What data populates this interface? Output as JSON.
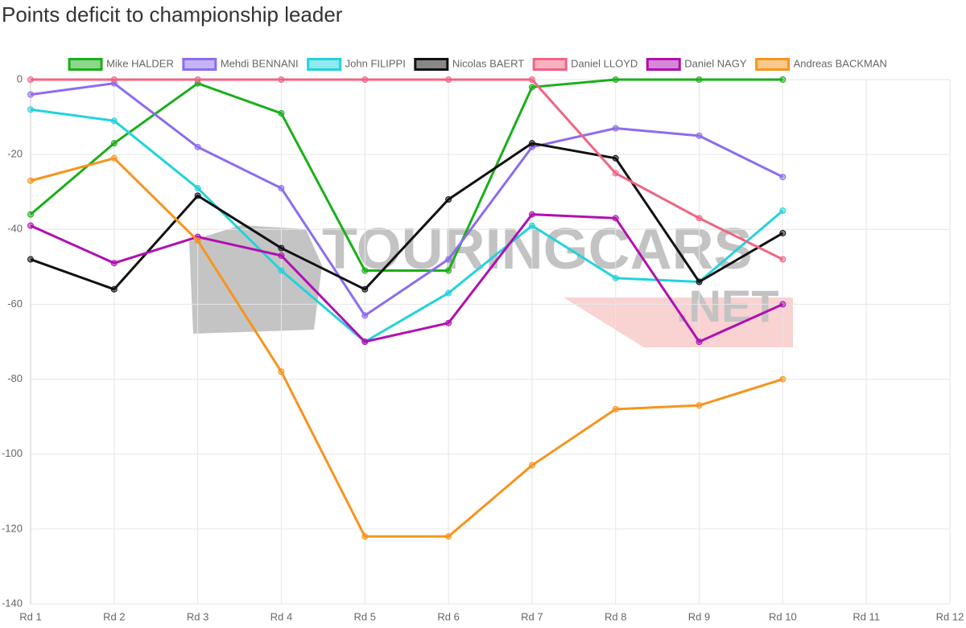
{
  "chart_data": {
    "type": "line",
    "title": "Points deficit to championship leader",
    "watermark": [
      "TOURINGCARS",
      ".NET"
    ],
    "categories": [
      "Rd 1",
      "Rd 2",
      "Rd 3",
      "Rd 4",
      "Rd 5",
      "Rd 6",
      "Rd 7",
      "Rd 8",
      "Rd 9",
      "Rd 10",
      "Rd 11",
      "Rd 12"
    ],
    "series": [
      {
        "name": "Mike HALDER",
        "color": "#1aaf1a",
        "values": [
          -36,
          -17,
          -1,
          -9,
          -51,
          -51,
          -2,
          0,
          0,
          0,
          null,
          null
        ]
      },
      {
        "name": "Mehdi BENNANI",
        "color": "#8c6cf0",
        "values": [
          -4,
          -1,
          -18,
          -29,
          -63,
          -48,
          -18,
          -13,
          -15,
          -26,
          null,
          null
        ]
      },
      {
        "name": "John FILIPPI",
        "color": "#22d3dc",
        "values": [
          -8,
          -11,
          -29,
          -51,
          -70,
          -57,
          -39,
          -53,
          -54,
          -35,
          null,
          null
        ]
      },
      {
        "name": "Nicolas BAERT",
        "color": "#111111",
        "values": [
          -48,
          -56,
          -31,
          -45,
          -56,
          -32,
          -17,
          -21,
          -54,
          -41,
          null,
          null
        ]
      },
      {
        "name": "Daniel LLOYD",
        "color": "#f06482",
        "values": [
          0,
          0,
          0,
          0,
          0,
          0,
          0,
          -25,
          -37,
          -48,
          null,
          null
        ]
      },
      {
        "name": "Daniel NAGY",
        "color": "#b010b0",
        "values": [
          -39,
          -49,
          -42,
          -47,
          -70,
          -65,
          -36,
          -37,
          -70,
          -60,
          null,
          null
        ]
      },
      {
        "name": "Andreas BACKMAN",
        "color": "#f7941d",
        "values": [
          -27,
          -21,
          -43,
          -78,
          -122,
          -122,
          -103,
          -88,
          -87,
          -80,
          null,
          null
        ]
      }
    ],
    "ylim": [
      -140,
      0
    ],
    "yticks": [
      0,
      -20,
      -40,
      -60,
      -80,
      -100,
      -120,
      -140
    ],
    "grid": true,
    "legend": "top"
  }
}
